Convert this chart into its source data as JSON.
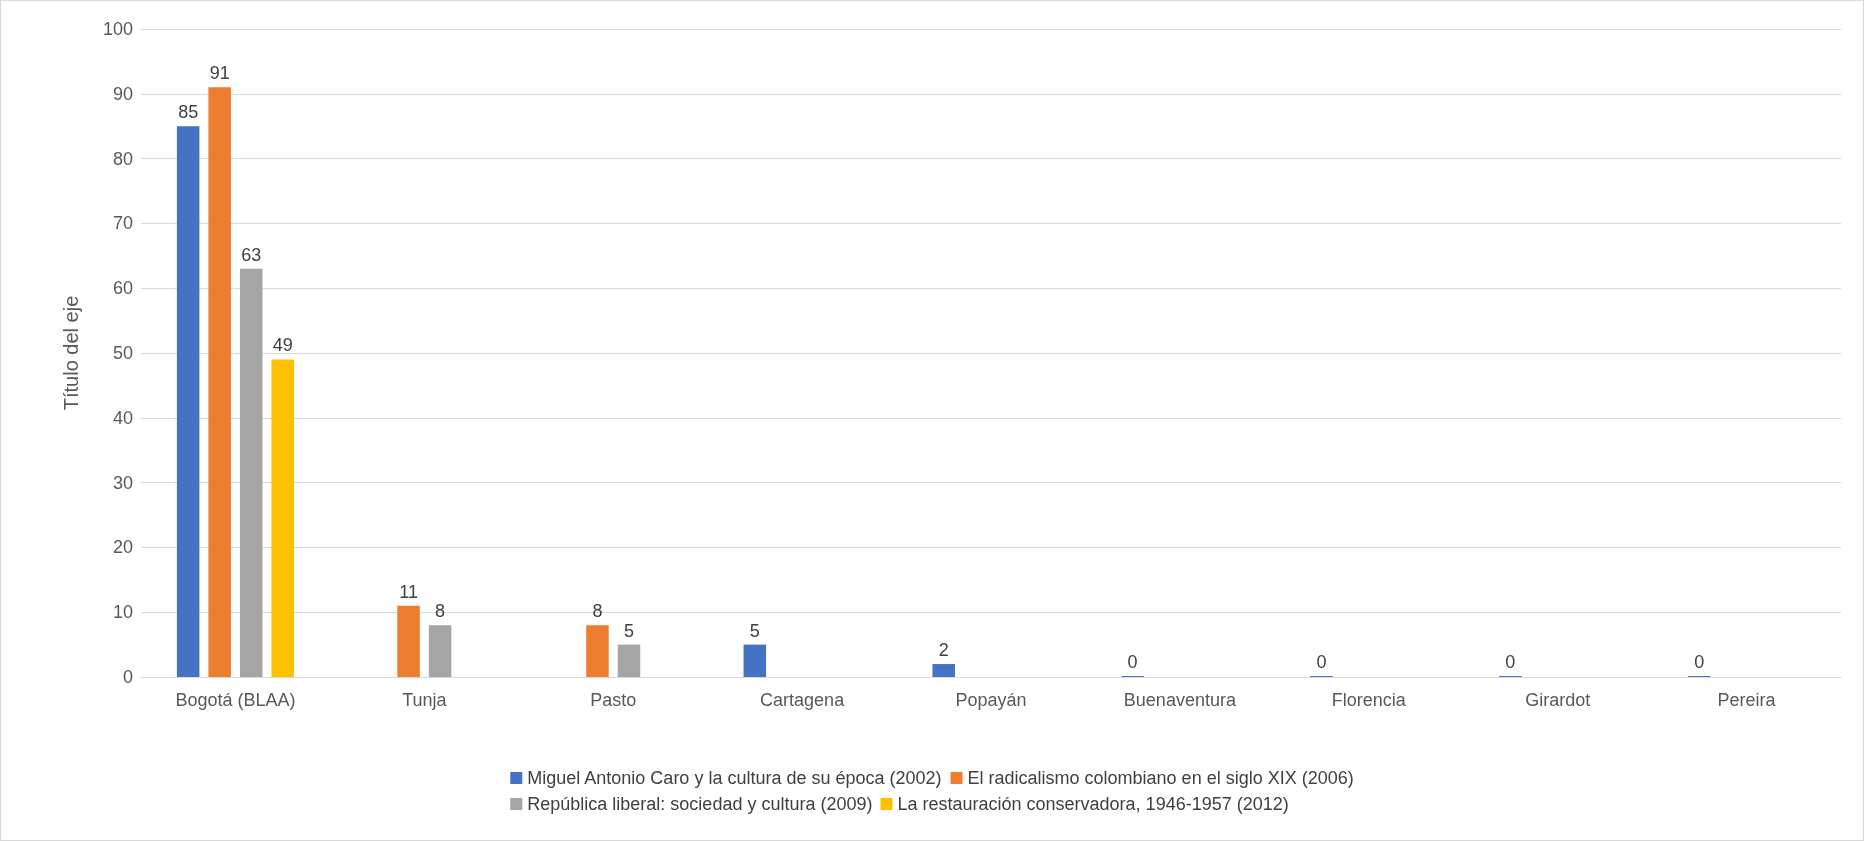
{
  "chart_data": {
    "type": "bar",
    "ylabel": "Título del eje",
    "categories": [
      "Bogotá (BLAA)",
      "Tunja",
      "Pasto",
      "Cartagena",
      "Popayán",
      "Buenaventura",
      "Florencia",
      "Girardot",
      "Pereira"
    ],
    "series": [
      {
        "name": "Miguel Antonio Caro y la cultura de su época (2002)",
        "color": "#4472c4",
        "values": [
          85,
          null,
          null,
          5,
          2,
          0,
          0,
          0,
          0
        ]
      },
      {
        "name": "El radicalismo colombiano en el siglo XIX (2006)",
        "color": "#ed7d31",
        "values": [
          91,
          11,
          8,
          null,
          null,
          null,
          null,
          null,
          null
        ]
      },
      {
        "name": "República liberal: sociedad y cultura (2009)",
        "color": "#a5a5a5",
        "values": [
          63,
          8,
          5,
          null,
          null,
          null,
          null,
          null,
          null
        ]
      },
      {
        "name": "La restauración conservadora, 1946-1957 (2012)",
        "color": "#ffc000",
        "values": [
          49,
          null,
          null,
          null,
          null,
          null,
          null,
          null,
          null
        ]
      }
    ],
    "ylim": [
      0,
      100
    ],
    "yticks": [
      0,
      10,
      20,
      30,
      40,
      50,
      60,
      70,
      80,
      90,
      100
    ],
    "grid": "y",
    "legend": "bottom",
    "data_labels": true
  }
}
